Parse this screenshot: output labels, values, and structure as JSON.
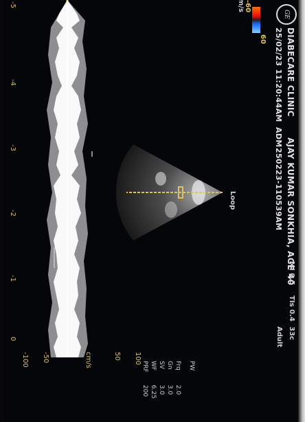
{
  "header": {
    "clinic": "DIABECARE CLINIC",
    "patient": "AJAY KUMAR SONKHIA, AGE 40",
    "datetime": "25/02/23 11:20:44AM",
    "adm": "ADM",
    "study_id": "250223-110539AM",
    "mi": "MI 0.5",
    "tis": "TIs 0.4",
    "frame_rate": "33c",
    "preset": "Adult",
    "logo_text": "GE"
  },
  "color_scale": {
    "top": "60",
    "bottom": "-60",
    "unit": "cm/s"
  },
  "sector_label": "Loop",
  "time_axis": {
    "ticks": [
      "-5",
      "-4",
      "-3",
      "-2",
      "-1",
      "0"
    ]
  },
  "velocity_axis": {
    "unit": "cm/s",
    "ticks": [
      "-100",
      "-50",
      "",
      "50",
      "100"
    ]
  },
  "param_labels": [
    "Frq",
    "Gn",
    "SV",
    "WF",
    "PRF",
    "PW"
  ],
  "param_values": [
    "2.0",
    "3.0",
    "3.0",
    "6.25",
    "200",
    ""
  ],
  "colors": {
    "background": "#050609",
    "baseline": "#d4b64a",
    "spectrum": "#ffffff",
    "text": "#d8d8d8"
  }
}
